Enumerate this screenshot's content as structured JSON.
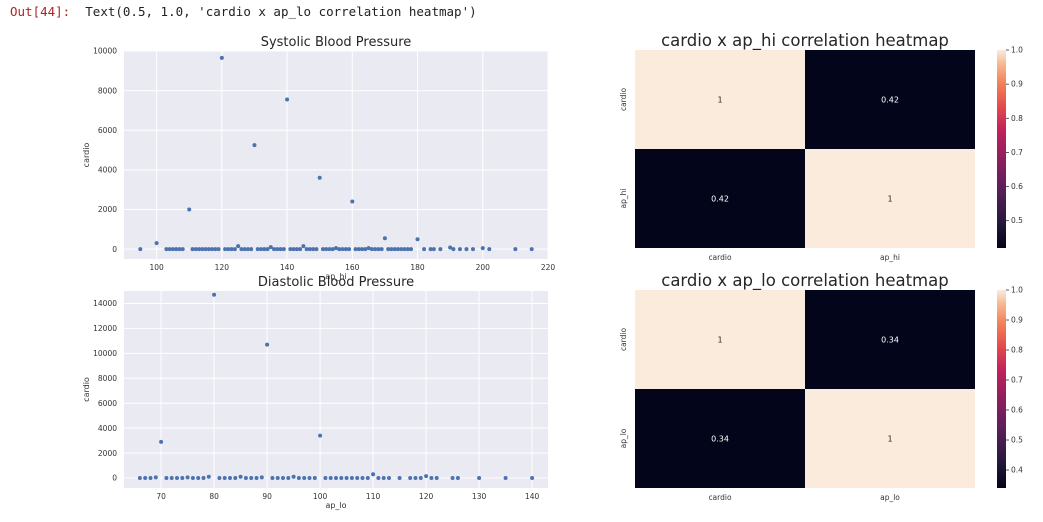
{
  "output": {
    "prompt": "Out[44]:",
    "text": "Text(0.5, 1.0, 'cardio x ap_lo correlation heatmap')"
  },
  "colors": {
    "axes_bg": "#eaeaf2",
    "grid": "#ffffff",
    "point": "#4c72b0",
    "heat_high": "#faebdd",
    "heat_low": "#03051a"
  },
  "chart_data": [
    {
      "type": "scatter",
      "title": "Systolic Blood Pressure",
      "xlabel": "ap_hi",
      "ylabel": "cardio",
      "xlim": [
        90,
        220
      ],
      "ylim": [
        -500,
        10000
      ],
      "xticks": [
        100,
        120,
        140,
        160,
        180,
        200,
        220
      ],
      "yticks": [
        0,
        2000,
        4000,
        6000,
        8000,
        10000
      ],
      "grid": true,
      "points": [
        [
          95,
          0
        ],
        [
          100,
          300
        ],
        [
          103,
          0
        ],
        [
          104,
          0
        ],
        [
          105,
          0
        ],
        [
          106,
          0
        ],
        [
          107,
          0
        ],
        [
          108,
          0
        ],
        [
          110,
          2000
        ],
        [
          111,
          0
        ],
        [
          112,
          0
        ],
        [
          113,
          0
        ],
        [
          114,
          0
        ],
        [
          115,
          0
        ],
        [
          116,
          0
        ],
        [
          117,
          0
        ],
        [
          118,
          0
        ],
        [
          119,
          0
        ],
        [
          120,
          9650
        ],
        [
          121,
          0
        ],
        [
          122,
          0
        ],
        [
          123,
          0
        ],
        [
          124,
          0
        ],
        [
          125,
          150
        ],
        [
          126,
          0
        ],
        [
          127,
          0
        ],
        [
          128,
          0
        ],
        [
          129,
          0
        ],
        [
          130,
          5250
        ],
        [
          131,
          0
        ],
        [
          132,
          0
        ],
        [
          133,
          0
        ],
        [
          134,
          0
        ],
        [
          135,
          100
        ],
        [
          136,
          0
        ],
        [
          137,
          0
        ],
        [
          138,
          0
        ],
        [
          139,
          0
        ],
        [
          140,
          7550
        ],
        [
          141,
          0
        ],
        [
          142,
          0
        ],
        [
          143,
          0
        ],
        [
          144,
          0
        ],
        [
          145,
          150
        ],
        [
          146,
          0
        ],
        [
          147,
          0
        ],
        [
          148,
          0
        ],
        [
          149,
          0
        ],
        [
          150,
          3600
        ],
        [
          151,
          0
        ],
        [
          152,
          0
        ],
        [
          153,
          0
        ],
        [
          154,
          0
        ],
        [
          155,
          50
        ],
        [
          156,
          0
        ],
        [
          157,
          0
        ],
        [
          158,
          0
        ],
        [
          159,
          0
        ],
        [
          160,
          2400
        ],
        [
          161,
          0
        ],
        [
          162,
          0
        ],
        [
          163,
          0
        ],
        [
          164,
          0
        ],
        [
          165,
          50
        ],
        [
          166,
          0
        ],
        [
          167,
          0
        ],
        [
          168,
          0
        ],
        [
          169,
          0
        ],
        [
          170,
          550
        ],
        [
          171,
          0
        ],
        [
          172,
          0
        ],
        [
          173,
          0
        ],
        [
          174,
          0
        ],
        [
          175,
          0
        ],
        [
          176,
          0
        ],
        [
          177,
          0
        ],
        [
          178,
          0
        ],
        [
          180,
          500
        ],
        [
          182,
          0
        ],
        [
          184,
          0
        ],
        [
          185,
          0
        ],
        [
          187,
          0
        ],
        [
          190,
          80
        ],
        [
          191,
          0
        ],
        [
          193,
          0
        ],
        [
          195,
          0
        ],
        [
          197,
          0
        ],
        [
          200,
          50
        ],
        [
          202,
          0
        ],
        [
          210,
          0
        ],
        [
          215,
          0
        ]
      ]
    },
    {
      "type": "scatter",
      "title": "Diastolic Blood Pressure",
      "xlabel": "ap_lo",
      "ylabel": "cardio",
      "xlim": [
        63,
        143
      ],
      "ylim": [
        -800,
        15000
      ],
      "xticks": [
        70,
        80,
        90,
        100,
        110,
        120,
        130,
        140
      ],
      "yticks": [
        0,
        2000,
        4000,
        6000,
        8000,
        10000,
        12000,
        14000
      ],
      "grid": true,
      "points": [
        [
          66,
          0
        ],
        [
          67,
          0
        ],
        [
          68,
          0
        ],
        [
          69,
          50
        ],
        [
          70,
          2900
        ],
        [
          71,
          0
        ],
        [
          72,
          0
        ],
        [
          73,
          0
        ],
        [
          74,
          0
        ],
        [
          75,
          50
        ],
        [
          76,
          0
        ],
        [
          77,
          0
        ],
        [
          78,
          0
        ],
        [
          79,
          100
        ],
        [
          80,
          14700
        ],
        [
          81,
          0
        ],
        [
          82,
          0
        ],
        [
          83,
          0
        ],
        [
          84,
          0
        ],
        [
          85,
          100
        ],
        [
          86,
          0
        ],
        [
          87,
          0
        ],
        [
          88,
          0
        ],
        [
          89,
          50
        ],
        [
          90,
          10700
        ],
        [
          91,
          0
        ],
        [
          92,
          0
        ],
        [
          93,
          0
        ],
        [
          94,
          0
        ],
        [
          95,
          100
        ],
        [
          96,
          0
        ],
        [
          97,
          0
        ],
        [
          98,
          0
        ],
        [
          99,
          0
        ],
        [
          100,
          3400
        ],
        [
          101,
          0
        ],
        [
          102,
          0
        ],
        [
          103,
          0
        ],
        [
          104,
          0
        ],
        [
          105,
          0
        ],
        [
          106,
          0
        ],
        [
          107,
          0
        ],
        [
          108,
          0
        ],
        [
          109,
          0
        ],
        [
          110,
          300
        ],
        [
          111,
          0
        ],
        [
          112,
          0
        ],
        [
          113,
          0
        ],
        [
          115,
          0
        ],
        [
          117,
          0
        ],
        [
          118,
          0
        ],
        [
          119,
          0
        ],
        [
          120,
          150
        ],
        [
          121,
          0
        ],
        [
          122,
          0
        ],
        [
          125,
          0
        ],
        [
          126,
          0
        ],
        [
          130,
          0
        ],
        [
          135,
          0
        ],
        [
          140,
          0
        ]
      ]
    },
    {
      "type": "heatmap",
      "title": "cardio x ap_hi correlation heatmap",
      "xlabels": [
        "cardio",
        "ap_hi"
      ],
      "ylabels": [
        "cardio",
        "ap_hi"
      ],
      "matrix": [
        [
          1,
          0.42
        ],
        [
          0.42,
          1
        ]
      ],
      "cell_labels": [
        [
          "1",
          "0.42"
        ],
        [
          "0.42",
          "1"
        ]
      ],
      "vmin": 0.42,
      "vmax": 1.0,
      "colorbar_ticks": [
        0.5,
        0.6,
        0.7,
        0.8,
        0.9,
        1.0
      ],
      "colorbar_labels": [
        "0.5",
        "0.6",
        "0.7",
        "0.8",
        "0.9",
        "1.0"
      ]
    },
    {
      "type": "heatmap",
      "title": "cardio x ap_lo correlation heatmap",
      "xlabels": [
        "cardio",
        "ap_lo"
      ],
      "ylabels": [
        "cardio",
        "ap_lo"
      ],
      "matrix": [
        [
          1,
          0.34
        ],
        [
          0.34,
          1
        ]
      ],
      "cell_labels": [
        [
          "1",
          "0.34"
        ],
        [
          "0.34",
          "1"
        ]
      ],
      "vmin": 0.34,
      "vmax": 1.0,
      "colorbar_ticks": [
        0.4,
        0.5,
        0.6,
        0.7,
        0.8,
        0.9,
        1.0
      ],
      "colorbar_labels": [
        "0.4",
        "0.5",
        "0.6",
        "0.7",
        "0.8",
        "0.9",
        "1.0"
      ]
    }
  ]
}
